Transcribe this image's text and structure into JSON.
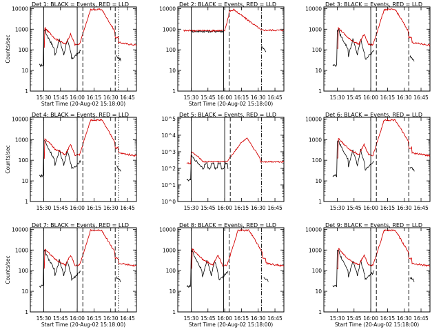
{
  "chart_data": [
    {
      "type": "line",
      "title": "Det 1: BLACK = Events, RED = LLD",
      "xlabel": "Start Time (20-Aug-02 15:18:00)",
      "ylabel": "Counts/sec",
      "yscale": "log",
      "ylim": [
        1,
        12000
      ],
      "x_ticks": [
        "15:30",
        "15:45",
        "16:00",
        "16:15",
        "16:30",
        "16:45"
      ],
      "y_ticks": [
        "1",
        "10",
        "100",
        "1000",
        "10000"
      ],
      "y_tick_style": "plain",
      "series": [
        {
          "name": "Events",
          "color": "#000000"
        },
        {
          "name": "LLD",
          "color": "#d40000"
        }
      ],
      "profile": "standard",
      "vlines": [
        {
          "t": "15:30",
          "style": "solid"
        },
        {
          "t": "16:00",
          "style": "solid"
        },
        {
          "t": "16:05",
          "style": "dashed"
        },
        {
          "t": "16:34",
          "style": "dashed"
        },
        {
          "t": "16:37",
          "style": "dotted"
        }
      ]
    },
    {
      "type": "line",
      "title": "Det 2: BLACK = Events, RED = LLD",
      "xlabel": "Start Time (20-Aug-02 15:18:00)",
      "ylabel": "",
      "yscale": "log",
      "ylim": [
        1,
        12000
      ],
      "x_ticks": [
        "15:30",
        "15:45",
        "16:00",
        "16:15",
        "16:30",
        "16:45"
      ],
      "y_ticks": [
        "1",
        "10",
        "100",
        "1000",
        "10000"
      ],
      "y_tick_style": "plain",
      "series": [
        {
          "name": "Events",
          "color": "#000000"
        },
        {
          "name": "LLD",
          "color": "#d40000"
        }
      ],
      "profile": "flat",
      "vlines": [
        {
          "t": "15:30",
          "style": "solid"
        },
        {
          "t": "15:59",
          "style": "solid"
        },
        {
          "t": "16:04",
          "style": "dashed"
        },
        {
          "t": "16:33",
          "style": "dashdot"
        }
      ]
    },
    {
      "type": "line",
      "title": "Det 3: BLACK = Events, RED = LLD",
      "xlabel": "",
      "ylabel": "",
      "yscale": "log",
      "ylim": [
        1,
        12000
      ],
      "x_ticks": [
        "15:30",
        "15:45",
        "16:00",
        "16:15",
        "16:30",
        "16:45"
      ],
      "y_ticks": [
        "1",
        "10",
        "100",
        "1000",
        "10000"
      ],
      "y_tick_style": "plain",
      "series": [
        {
          "name": "Events",
          "color": "#000000"
        },
        {
          "name": "LLD",
          "color": "#d40000"
        }
      ],
      "profile": "standard",
      "vlines": [
        {
          "t": "16:00",
          "style": "solid"
        },
        {
          "t": "16:05",
          "style": "dashed"
        },
        {
          "t": "16:34",
          "style": "dashed"
        }
      ]
    },
    {
      "type": "line",
      "title": "Det 4: BLACK = Events, RED = LLD",
      "xlabel": "",
      "ylabel": "Counts/sec",
      "yscale": "log",
      "ylim": [
        1,
        12000
      ],
      "x_ticks": [
        "15:30",
        "15:45",
        "16:00",
        "16:15",
        "16:30",
        "16:45"
      ],
      "y_ticks": [
        "1",
        "10",
        "100",
        "1000",
        "10000"
      ],
      "y_tick_style": "plain",
      "series": [
        {
          "name": "Events",
          "color": "#000000"
        },
        {
          "name": "LLD",
          "color": "#d40000"
        }
      ],
      "profile": "standard",
      "vlines": [
        {
          "t": "15:30",
          "style": "solid"
        },
        {
          "t": "16:00",
          "style": "solid"
        },
        {
          "t": "16:05",
          "style": "dashed"
        },
        {
          "t": "16:34",
          "style": "dashed"
        },
        {
          "t": "16:37",
          "style": "dotted"
        }
      ]
    },
    {
      "type": "line",
      "title": "Det 5: BLACK = Events, RED = LLD",
      "xlabel": "",
      "ylabel": "",
      "yscale": "log",
      "ylim": [
        1,
        120000
      ],
      "x_ticks": [
        "15:30",
        "15:45",
        "16:00",
        "16:15",
        "16:30",
        "16:45"
      ],
      "y_ticks": [
        "10^0",
        "10^1",
        "10^2",
        "10^3",
        "10^4",
        "10^5"
      ],
      "y_tick_style": "power",
      "series": [
        {
          "name": "Events",
          "color": "#000000"
        },
        {
          "name": "LLD",
          "color": "#d40000"
        }
      ],
      "profile": "det5",
      "vlines": [
        {
          "t": "15:30",
          "style": "solid"
        },
        {
          "t": "16:00",
          "style": "solid"
        },
        {
          "t": "16:05",
          "style": "dashed"
        },
        {
          "t": "16:33",
          "style": "dashdot"
        }
      ]
    },
    {
      "type": "line",
      "title": "Det 6: BLACK = Events, RED = LLD",
      "xlabel": "",
      "ylabel": "",
      "yscale": "log",
      "ylim": [
        1,
        12000
      ],
      "x_ticks": [
        "15:30",
        "15:45",
        "16:00",
        "16:15",
        "16:30",
        "16:45"
      ],
      "y_ticks": [
        "1",
        "10",
        "100",
        "1000",
        "10000"
      ],
      "y_tick_style": "plain",
      "series": [
        {
          "name": "Events",
          "color": "#000000"
        },
        {
          "name": "LLD",
          "color": "#d40000"
        }
      ],
      "profile": "standard",
      "vlines": [
        {
          "t": "16:00",
          "style": "solid"
        },
        {
          "t": "16:05",
          "style": "dashed"
        },
        {
          "t": "16:34",
          "style": "dashed"
        }
      ]
    },
    {
      "type": "line",
      "title": "Det 7: BLACK = Events, RED = LLD",
      "xlabel": "Start Time (20-Aug-02 15:18:00)",
      "ylabel": "Counts/sec",
      "yscale": "log",
      "ylim": [
        1,
        12000
      ],
      "x_ticks": [
        "15:30",
        "15:45",
        "16:00",
        "16:15",
        "16:30",
        "16:45"
      ],
      "y_ticks": [
        "1",
        "10",
        "100",
        "1000",
        "10000"
      ],
      "y_tick_style": "plain",
      "series": [
        {
          "name": "Events",
          "color": "#000000"
        },
        {
          "name": "LLD",
          "color": "#d40000"
        }
      ],
      "profile": "standard",
      "vlines": [
        {
          "t": "15:30",
          "style": "solid"
        },
        {
          "t": "16:00",
          "style": "solid"
        },
        {
          "t": "16:05",
          "style": "dashed"
        },
        {
          "t": "16:34",
          "style": "dashed"
        },
        {
          "t": "16:37",
          "style": "dotted"
        }
      ]
    },
    {
      "type": "line",
      "title": "Det 8: BLACK = Events, RED = LLD",
      "xlabel": "Start Time (20-Aug-02 15:18:00)",
      "ylabel": "",
      "yscale": "log",
      "ylim": [
        1,
        12000
      ],
      "x_ticks": [
        "15:30",
        "15:45",
        "16:00",
        "16:15",
        "16:30",
        "16:45"
      ],
      "y_ticks": [
        "1",
        "10",
        "100",
        "1000",
        "10000"
      ],
      "y_tick_style": "plain",
      "series": [
        {
          "name": "Events",
          "color": "#000000"
        },
        {
          "name": "LLD",
          "color": "#d40000"
        }
      ],
      "profile": "standard",
      "vlines": [
        {
          "t": "15:30",
          "style": "solid"
        },
        {
          "t": "15:59",
          "style": "solid"
        },
        {
          "t": "16:04",
          "style": "dashed"
        },
        {
          "t": "16:33",
          "style": "dashdot"
        }
      ]
    },
    {
      "type": "line",
      "title": "Det 9: BLACK = Events, RED = LLD",
      "xlabel": "Start Time (20-Aug-02 15:18:00)",
      "ylabel": "",
      "yscale": "log",
      "ylim": [
        1,
        12000
      ],
      "x_ticks": [
        "15:30",
        "15:45",
        "16:00",
        "16:15",
        "16:30",
        "16:45"
      ],
      "y_ticks": [
        "1",
        "10",
        "100",
        "1000",
        "10000"
      ],
      "y_tick_style": "plain",
      "series": [
        {
          "name": "Events",
          "color": "#000000"
        },
        {
          "name": "LLD",
          "color": "#d40000"
        }
      ],
      "profile": "standard",
      "vlines": [
        {
          "t": "16:00",
          "style": "solid"
        },
        {
          "t": "16:05",
          "style": "dashed"
        },
        {
          "t": "16:34",
          "style": "dashed"
        }
      ]
    }
  ]
}
